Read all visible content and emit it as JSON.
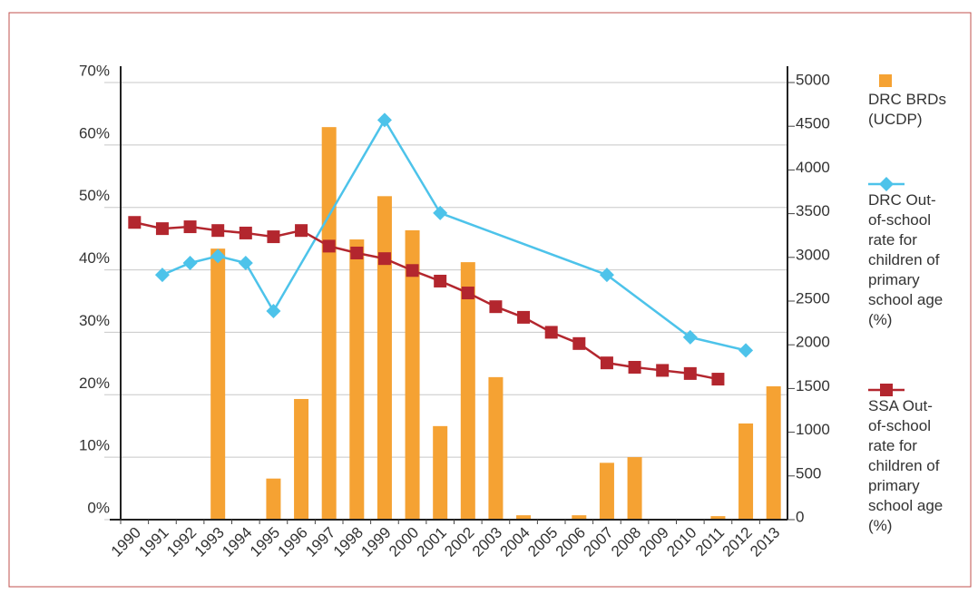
{
  "chart_data": {
    "type": "bar-line",
    "categories": [
      "1990",
      "1991",
      "1992",
      "1993",
      "1994",
      "1995",
      "1996",
      "1997",
      "1998",
      "1999",
      "2000",
      "2001",
      "2002",
      "2003",
      "2004",
      "2005",
      "2006",
      "2007",
      "2008",
      "2009",
      "2010",
      "2011",
      "2012",
      "2013"
    ],
    "series": [
      {
        "name": "DRC BRDs (UCDP)",
        "type": "bar",
        "axis": "y2",
        "color": "#f5a233",
        "values": [
          null,
          null,
          null,
          3100,
          null,
          470,
          1380,
          4490,
          3205,
          3700,
          3310,
          1070,
          2945,
          1630,
          50,
          null,
          50,
          650,
          715,
          null,
          null,
          40,
          1100,
          1525
        ]
      },
      {
        "name": "DRC Out-of-school rate for children of primary school age (%)",
        "type": "line",
        "marker": "diamond",
        "color": "#4dc3ea",
        "x": [
          "1991",
          "1992",
          "1993",
          "1994",
          "1995",
          "1999",
          "2001",
          "2007",
          "2010",
          "2012"
        ],
        "values": [
          39.2,
          41.1,
          42.2,
          41.1,
          33.4,
          64.0,
          49.1,
          39.2,
          29.2,
          27.1
        ]
      },
      {
        "name": "SSA Out-of-school rate for children of primary school age (%)",
        "type": "line",
        "marker": "square",
        "color": "#b3262e",
        "values": [
          47.6,
          46.6,
          46.9,
          46.3,
          45.9,
          45.3,
          46.3,
          43.8,
          42.7,
          41.8,
          39.9,
          38.2,
          36.3,
          34.1,
          32.4,
          30.0,
          28.2,
          25.1,
          24.4,
          23.9,
          23.4,
          22.5,
          null,
          null
        ]
      }
    ],
    "ylim": [
      0,
      70
    ],
    "yticks": [
      {
        "value": 0,
        "label": "0%"
      },
      {
        "value": 10,
        "label": "10%"
      },
      {
        "value": 20,
        "label": "20%"
      },
      {
        "value": 30,
        "label": "30%"
      },
      {
        "value": 40,
        "label": "40%"
      },
      {
        "value": 50,
        "label": "50%"
      },
      {
        "value": 60,
        "label": "60%"
      },
      {
        "value": 70,
        "label": "70%"
      }
    ],
    "y2lim": [
      0,
      5000
    ],
    "y2ticks": [
      0,
      500,
      1000,
      1500,
      2000,
      2500,
      3000,
      3500,
      4000,
      4500,
      5000
    ],
    "grid": true,
    "legend": "right"
  }
}
